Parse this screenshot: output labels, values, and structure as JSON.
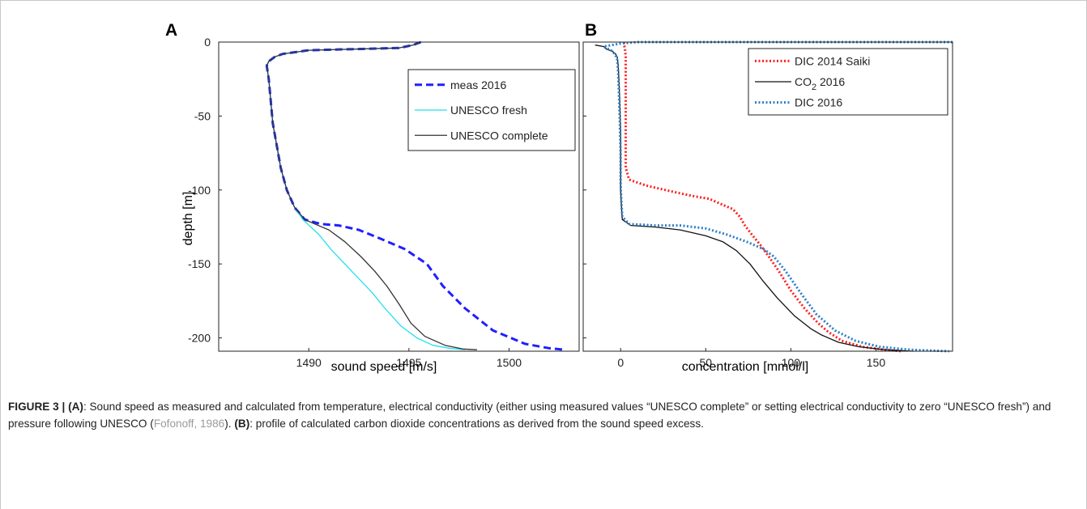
{
  "figure": {
    "panels": [
      "A",
      "B"
    ]
  },
  "chart_data": [
    {
      "type": "line",
      "panel": "A",
      "xlabel": "sound speed [m/s]",
      "ylabel": "depth [m]",
      "xlim": [
        1485.5,
        1503.5
      ],
      "ylim": [
        -209,
        0
      ],
      "xticks": [
        1490,
        1495,
        1500
      ],
      "yticks": [
        0,
        -50,
        -100,
        -150,
        -200
      ],
      "grid": false,
      "legend_position": "upper-right",
      "series": [
        {
          "name": "meas 2016",
          "color": "#1f1fff",
          "style": "dashed",
          "points": [
            [
              1495.6,
              0
            ],
            [
              1495.2,
              -2
            ],
            [
              1494.5,
              -4
            ],
            [
              1490.0,
              -5.5
            ],
            [
              1488.7,
              -8
            ],
            [
              1488.3,
              -10
            ],
            [
              1488.0,
              -13
            ],
            [
              1487.9,
              -16
            ],
            [
              1488.0,
              -25
            ],
            [
              1488.1,
              -40
            ],
            [
              1488.2,
              -55
            ],
            [
              1488.4,
              -70
            ],
            [
              1488.6,
              -85
            ],
            [
              1488.9,
              -100
            ],
            [
              1489.3,
              -112
            ],
            [
              1489.8,
              -120
            ],
            [
              1490.6,
              -123
            ],
            [
              1491.5,
              -124
            ],
            [
              1492.5,
              -127
            ],
            [
              1493.6,
              -133
            ],
            [
              1494.8,
              -140
            ],
            [
              1495.9,
              -150
            ],
            [
              1496.7,
              -165
            ],
            [
              1497.8,
              -180
            ],
            [
              1499.2,
              -195
            ],
            [
              1500.8,
              -204
            ],
            [
              1502.0,
              -207
            ],
            [
              1502.8,
              -208
            ]
          ]
        },
        {
          "name": "UNESCO fresh",
          "color": "#22e0ee",
          "style": "solid",
          "points": [
            [
              1495.6,
              0
            ],
            [
              1495.2,
              -2
            ],
            [
              1494.5,
              -4
            ],
            [
              1490.0,
              -5.5
            ],
            [
              1488.7,
              -8
            ],
            [
              1488.3,
              -10
            ],
            [
              1488.0,
              -13
            ],
            [
              1487.9,
              -16
            ],
            [
              1488.0,
              -25
            ],
            [
              1488.1,
              -40
            ],
            [
              1488.2,
              -55
            ],
            [
              1488.4,
              -70
            ],
            [
              1488.6,
              -85
            ],
            [
              1488.9,
              -100
            ],
            [
              1489.3,
              -112
            ],
            [
              1489.7,
              -120
            ],
            [
              1490.1,
              -125
            ],
            [
              1490.5,
              -130
            ],
            [
              1491.1,
              -140
            ],
            [
              1491.8,
              -150
            ],
            [
              1492.5,
              -160
            ],
            [
              1493.2,
              -170
            ],
            [
              1493.8,
              -180
            ],
            [
              1494.6,
              -192
            ],
            [
              1495.4,
              -200
            ],
            [
              1496.2,
              -205
            ],
            [
              1497.0,
              -207
            ],
            [
              1497.8,
              -208
            ]
          ]
        },
        {
          "name": "UNESCO complete",
          "color": "#333333",
          "style": "solid",
          "points": [
            [
              1495.6,
              0
            ],
            [
              1495.2,
              -2
            ],
            [
              1494.5,
              -4
            ],
            [
              1490.0,
              -5.5
            ],
            [
              1488.7,
              -8
            ],
            [
              1488.3,
              -10
            ],
            [
              1488.0,
              -13
            ],
            [
              1487.9,
              -16
            ],
            [
              1488.0,
              -25
            ],
            [
              1488.1,
              -40
            ],
            [
              1488.2,
              -55
            ],
            [
              1488.4,
              -70
            ],
            [
              1488.6,
              -85
            ],
            [
              1488.9,
              -100
            ],
            [
              1489.3,
              -112
            ],
            [
              1489.8,
              -120
            ],
            [
              1490.3,
              -123
            ],
            [
              1491.0,
              -127
            ],
            [
              1491.8,
              -135
            ],
            [
              1492.6,
              -145
            ],
            [
              1493.3,
              -155
            ],
            [
              1493.9,
              -165
            ],
            [
              1494.5,
              -177
            ],
            [
              1495.1,
              -190
            ],
            [
              1495.8,
              -199
            ],
            [
              1496.8,
              -205
            ],
            [
              1497.7,
              -207.5
            ],
            [
              1498.4,
              -208
            ]
          ]
        }
      ]
    },
    {
      "type": "line",
      "panel": "B",
      "xlabel": "concentration [mmol/l]",
      "ylabel": "",
      "xlim": [
        -22,
        195
      ],
      "ylim": [
        -209,
        0
      ],
      "xticks": [
        0,
        50,
        100,
        150
      ],
      "yticks": [
        0,
        -50,
        -100,
        -150,
        -200
      ],
      "grid": false,
      "legend_position": "upper-right",
      "series": [
        {
          "name": "DIC 2014 Saiki",
          "color": "#ff1f1f",
          "style": "dotted",
          "points": [
            [
              2,
              0
            ],
            [
              2,
              -2
            ],
            [
              2.5,
              -4
            ],
            [
              3,
              -10
            ],
            [
              3,
              -30
            ],
            [
              3,
              -60
            ],
            [
              3,
              -85
            ],
            [
              5,
              -93
            ],
            [
              15,
              -97
            ],
            [
              30,
              -101
            ],
            [
              42,
              -104
            ],
            [
              52,
              -106
            ],
            [
              60,
              -110
            ],
            [
              66,
              -113
            ],
            [
              70,
              -118
            ],
            [
              73,
              -124
            ],
            [
              77,
              -130
            ],
            [
              82,
              -137
            ],
            [
              87,
              -145
            ],
            [
              93,
              -155
            ],
            [
              100,
              -168
            ],
            [
              108,
              -180
            ],
            [
              116,
              -190
            ],
            [
              122,
              -196
            ],
            [
              130,
              -202
            ],
            [
              142,
              -206
            ],
            [
              155,
              -208
            ],
            [
              165,
              -209
            ]
          ]
        },
        {
          "name": "CO2 2016",
          "color": "#111111",
          "style": "solid",
          "points": [
            [
              -15,
              -2
            ],
            [
              -10,
              -3
            ],
            [
              -8,
              -5
            ],
            [
              -5,
              -6
            ],
            [
              -3,
              -8
            ],
            [
              -2,
              -10
            ],
            [
              -1.5,
              -15
            ],
            [
              -1,
              -25
            ],
            [
              -0.5,
              -40
            ],
            [
              0,
              -60
            ],
            [
              0,
              -80
            ],
            [
              0,
              -100
            ],
            [
              0.5,
              -112
            ],
            [
              1,
              -120
            ],
            [
              6,
              -124
            ],
            [
              20,
              -125
            ],
            [
              35,
              -127
            ],
            [
              50,
              -131
            ],
            [
              60,
              -135
            ],
            [
              68,
              -141
            ],
            [
              76,
              -150
            ],
            [
              84,
              -162
            ],
            [
              92,
              -173
            ],
            [
              102,
              -185
            ],
            [
              112,
              -194
            ],
            [
              118,
              -198
            ],
            [
              128,
              -203
            ],
            [
              140,
              -206
            ],
            [
              155,
              -208
            ],
            [
              172,
              -209
            ]
          ]
        },
        {
          "name": "DIC 2016",
          "color": "#2b7fc8",
          "style": "dotted",
          "points": [
            [
              195,
              0
            ],
            [
              150,
              0
            ],
            [
              100,
              0
            ],
            [
              50,
              0
            ],
            [
              10,
              0
            ],
            [
              0,
              -1
            ],
            [
              -10,
              -3
            ],
            [
              -5,
              -6
            ],
            [
              -3,
              -9
            ],
            [
              -2,
              -12
            ],
            [
              -1.5,
              -20
            ],
            [
              -1,
              -35
            ],
            [
              -0.5,
              -55
            ],
            [
              0,
              -75
            ],
            [
              0,
              -95
            ],
            [
              0.5,
              -110
            ],
            [
              1,
              -118
            ],
            [
              5,
              -123
            ],
            [
              20,
              -124
            ],
            [
              35,
              -124
            ],
            [
              50,
              -126
            ],
            [
              62,
              -130
            ],
            [
              74,
              -135
            ],
            [
              84,
              -140
            ],
            [
              90,
              -145
            ],
            [
              97,
              -155
            ],
            [
              106,
              -170
            ],
            [
              115,
              -184
            ],
            [
              126,
              -195
            ],
            [
              138,
              -202
            ],
            [
              152,
              -206
            ],
            [
              170,
              -208
            ],
            [
              193,
              -209
            ]
          ]
        }
      ]
    }
  ],
  "caption": {
    "figure_label": "FIGURE 3",
    "separator": " | ",
    "part_a_label": "(A)",
    "part_a_text": ": Sound speed as measured and calculated from temperature, electrical conductivity (either using measured values “UNESCO complete” or setting electrical conductivity to zero “UNESCO fresh”) and pressure following UNESCO (",
    "citation": "Fofonoff, 1986",
    "part_a_end": "). ",
    "part_b_label": "(B)",
    "part_b_text": ": profile of calculated carbon dioxide concentrations as derived from the sound speed excess."
  }
}
